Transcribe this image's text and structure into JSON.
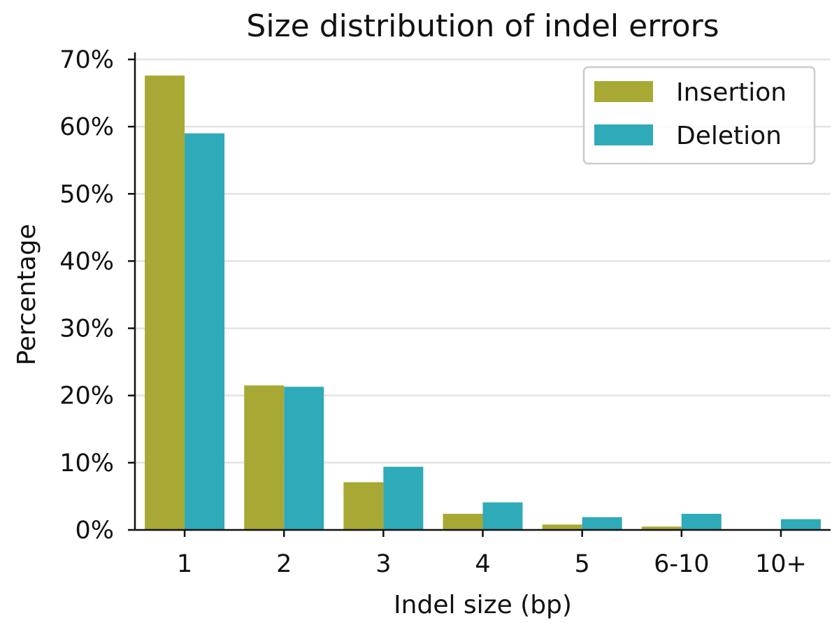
{
  "chart_data": {
    "type": "bar",
    "title": "Size distribution of indel errors",
    "xlabel": "Indel size (bp)",
    "ylabel": "Percentage",
    "categories": [
      "1",
      "2",
      "3",
      "4",
      "5",
      "6-10",
      "10+"
    ],
    "ylim": [
      0,
      70
    ],
    "yticks": [
      0,
      10,
      20,
      30,
      40,
      50,
      60,
      70
    ],
    "ytick_labels": [
      "0%",
      "10%",
      "20%",
      "30%",
      "40%",
      "50%",
      "60%",
      "70%"
    ],
    "grid": "horizontal",
    "legend_position": "top-right",
    "series": [
      {
        "name": "Insertion",
        "color": "#A8A934",
        "values": [
          67.6,
          21.5,
          7.1,
          2.4,
          0.8,
          0.5,
          0.0
        ]
      },
      {
        "name": "Deletion",
        "color": "#2EAAB9",
        "values": [
          59.0,
          21.3,
          9.4,
          4.1,
          1.9,
          2.4,
          1.6
        ]
      }
    ]
  }
}
